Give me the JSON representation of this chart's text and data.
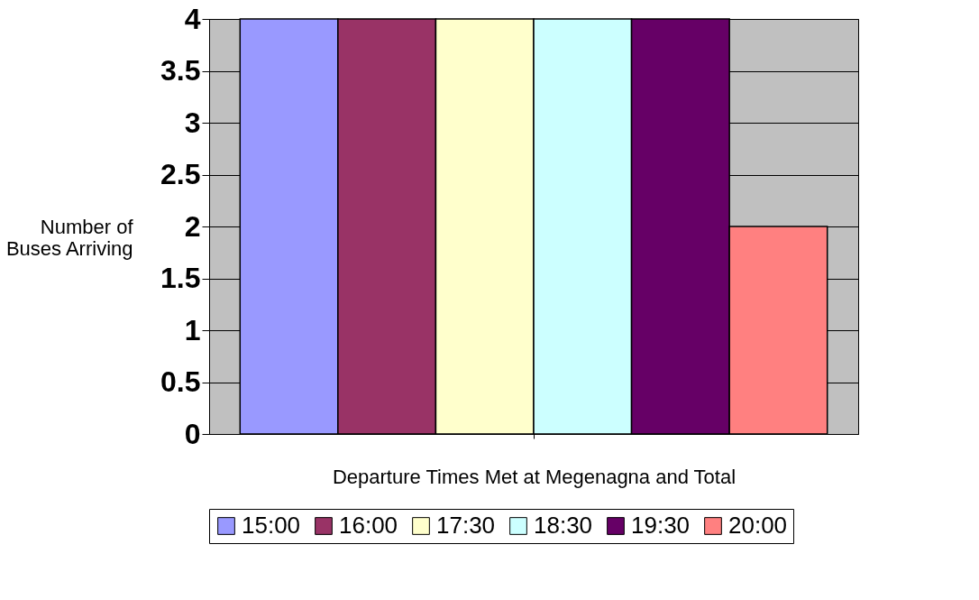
{
  "chart_data": {
    "type": "bar",
    "xlabel": "Departure Times Met at Megenagna and Total",
    "ylabel": "Number of Buses Arriving",
    "categories": [
      null
    ],
    "series": [
      {
        "name": "15:00",
        "color": "#9999ff",
        "values": [
          4
        ]
      },
      {
        "name": "16:00",
        "color": "#993366",
        "values": [
          4
        ]
      },
      {
        "name": "17:30",
        "color": "#ffffcc",
        "values": [
          4
        ]
      },
      {
        "name": "18:30",
        "color": "#ccffff",
        "values": [
          4
        ]
      },
      {
        "name": "19:30",
        "color": "#660066",
        "values": [
          4
        ]
      },
      {
        "name": "20:00",
        "color": "#ff8080",
        "values": [
          2
        ]
      }
    ],
    "ylim": [
      0,
      4
    ],
    "yticks": [
      0,
      0.5,
      1,
      1.5,
      2,
      2.5,
      3,
      3.5,
      4
    ],
    "grid": "y",
    "legend": "bottom"
  }
}
